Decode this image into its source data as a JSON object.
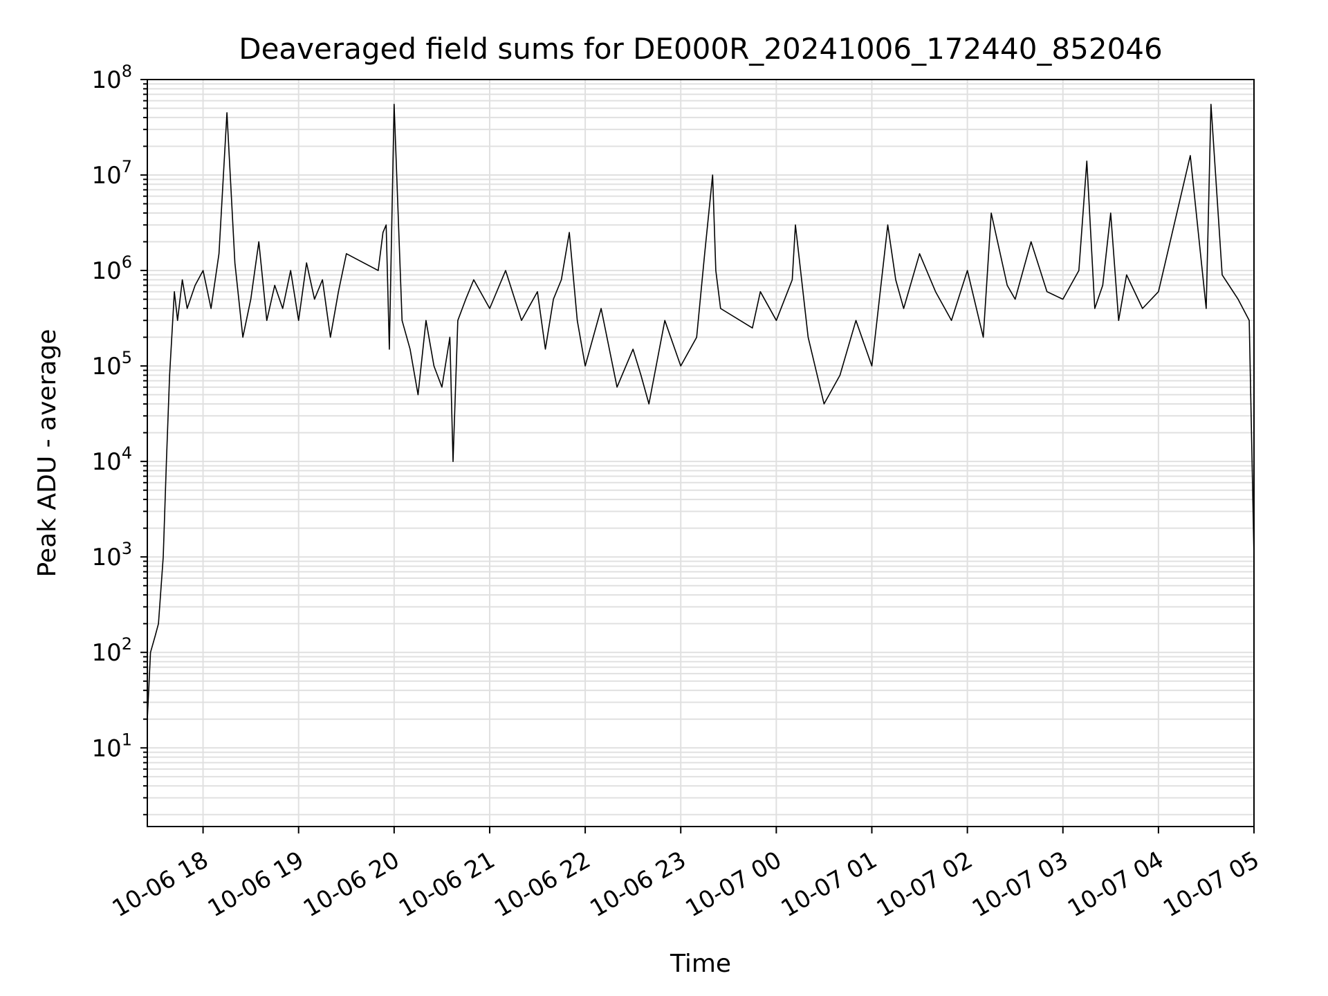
{
  "chart_data": {
    "type": "line",
    "title": "Deaveraged field sums for DE000R_20241006_172440_852046",
    "xlabel": "Time",
    "ylabel": "Peak ADU - average",
    "yscale": "log",
    "ylim": [
      1.5,
      100000000
    ],
    "xlim": [
      "2024-10-06 17:25",
      "2024-10-07 05:00"
    ],
    "grid": true,
    "colors": {
      "line": "#000000",
      "grid": "#e0e0e0"
    },
    "xticks": [
      "10-06 18",
      "10-06 19",
      "10-06 20",
      "10-06 21",
      "10-06 22",
      "10-06 23",
      "10-07 00",
      "10-07 01",
      "10-07 02",
      "10-07 03",
      "10-07 04",
      "10-07 05"
    ],
    "yticks": [
      {
        "base": "10",
        "exp": "1",
        "value": 10
      },
      {
        "base": "10",
        "exp": "2",
        "value": 100
      },
      {
        "base": "10",
        "exp": "3",
        "value": 1000
      },
      {
        "base": "10",
        "exp": "4",
        "value": 10000
      },
      {
        "base": "10",
        "exp": "5",
        "value": 100000
      },
      {
        "base": "10",
        "exp": "6",
        "value": 1000000
      },
      {
        "base": "10",
        "exp": "7",
        "value": 10000000
      },
      {
        "base": "10",
        "exp": "8",
        "value": 100000000
      }
    ],
    "series": [
      {
        "x": [
          "2024-10-06 17:25",
          "2024-10-06 17:27",
          "2024-10-06 17:30",
          "2024-10-06 17:32",
          "2024-10-06 17:35",
          "2024-10-06 17:37",
          "2024-10-06 17:39",
          "2024-10-06 17:42",
          "2024-10-06 17:44",
          "2024-10-06 17:47",
          "2024-10-06 17:50",
          "2024-10-06 17:55",
          "2024-10-06 18:00",
          "2024-10-06 18:05",
          "2024-10-06 18:10",
          "2024-10-06 18:15",
          "2024-10-06 18:20",
          "2024-10-06 18:25",
          "2024-10-06 18:30",
          "2024-10-06 18:35",
          "2024-10-06 18:40",
          "2024-10-06 18:45",
          "2024-10-06 18:50",
          "2024-10-06 18:55",
          "2024-10-06 19:00",
          "2024-10-06 19:05",
          "2024-10-06 19:10",
          "2024-10-06 19:15",
          "2024-10-06 19:20",
          "2024-10-06 19:25",
          "2024-10-06 19:30",
          "2024-10-06 19:50",
          "2024-10-06 19:53",
          "2024-10-06 19:55",
          "2024-10-06 19:57",
          "2024-10-06 20:00",
          "2024-10-06 20:05",
          "2024-10-06 20:10",
          "2024-10-06 20:15",
          "2024-10-06 20:20",
          "2024-10-06 20:25",
          "2024-10-06 20:30",
          "2024-10-06 20:35",
          "2024-10-06 20:37",
          "2024-10-06 20:40",
          "2024-10-06 20:45",
          "2024-10-06 20:50",
          "2024-10-06 21:00",
          "2024-10-06 21:10",
          "2024-10-06 21:20",
          "2024-10-06 21:30",
          "2024-10-06 21:35",
          "2024-10-06 21:40",
          "2024-10-06 21:45",
          "2024-10-06 21:50",
          "2024-10-06 21:55",
          "2024-10-06 22:00",
          "2024-10-06 22:10",
          "2024-10-06 22:20",
          "2024-10-06 22:30",
          "2024-10-06 22:35",
          "2024-10-06 22:40",
          "2024-10-06 22:50",
          "2024-10-06 23:00",
          "2024-10-06 23:10",
          "2024-10-06 23:15",
          "2024-10-06 23:20",
          "2024-10-06 23:22",
          "2024-10-06 23:25",
          "2024-10-06 23:45",
          "2024-10-06 23:50",
          "2024-10-07 00:00",
          "2024-10-07 00:10",
          "2024-10-07 00:12",
          "2024-10-07 00:20",
          "2024-10-07 00:30",
          "2024-10-07 00:40",
          "2024-10-07 00:50",
          "2024-10-07 01:00",
          "2024-10-07 01:10",
          "2024-10-07 01:15",
          "2024-10-07 01:20",
          "2024-10-07 01:30",
          "2024-10-07 01:40",
          "2024-10-07 01:50",
          "2024-10-07 02:00",
          "2024-10-07 02:10",
          "2024-10-07 02:15",
          "2024-10-07 02:25",
          "2024-10-07 02:30",
          "2024-10-07 02:40",
          "2024-10-07 02:50",
          "2024-10-07 03:00",
          "2024-10-07 03:10",
          "2024-10-07 03:15",
          "2024-10-07 03:20",
          "2024-10-07 03:25",
          "2024-10-07 03:30",
          "2024-10-07 03:35",
          "2024-10-07 03:40",
          "2024-10-07 03:50",
          "2024-10-07 04:00",
          "2024-10-07 04:20",
          "2024-10-07 04:30",
          "2024-10-07 04:33",
          "2024-10-07 04:40",
          "2024-10-07 04:50",
          "2024-10-07 04:57",
          "2024-10-07 05:00"
        ],
        "y": [
          20,
          100,
          150,
          200,
          1000,
          10000,
          80000,
          600000,
          300000,
          800000,
          400000,
          700000,
          1000000,
          400000,
          1500000,
          45000000,
          1200000,
          200000,
          500000,
          2000000,
          300000,
          700000,
          400000,
          1000000,
          300000,
          1200000,
          500000,
          800000,
          200000,
          600000,
          1500000,
          1000000,
          2500000,
          3000000,
          150000,
          55000000,
          300000,
          150000,
          50000,
          300000,
          100000,
          60000,
          200000,
          10000,
          300000,
          500000,
          800000,
          400000,
          1000000,
          300000,
          600000,
          150000,
          500000,
          800000,
          2500000,
          300000,
          100000,
          400000,
          60000,
          150000,
          80000,
          40000,
          300000,
          100000,
          200000,
          1500000,
          10000000,
          1000000,
          400000,
          250000,
          600000,
          300000,
          800000,
          3000000,
          200000,
          40000,
          80000,
          300000,
          100000,
          3000000,
          800000,
          400000,
          1500000,
          600000,
          300000,
          1000000,
          200000,
          4000000,
          700000,
          500000,
          2000000,
          600000,
          500000,
          1000000,
          14000000,
          400000,
          700000,
          4000000,
          300000,
          900000,
          400000,
          600000,
          16000000,
          400000,
          55000000,
          900000,
          500000,
          300000,
          1000
        ]
      }
    ]
  }
}
